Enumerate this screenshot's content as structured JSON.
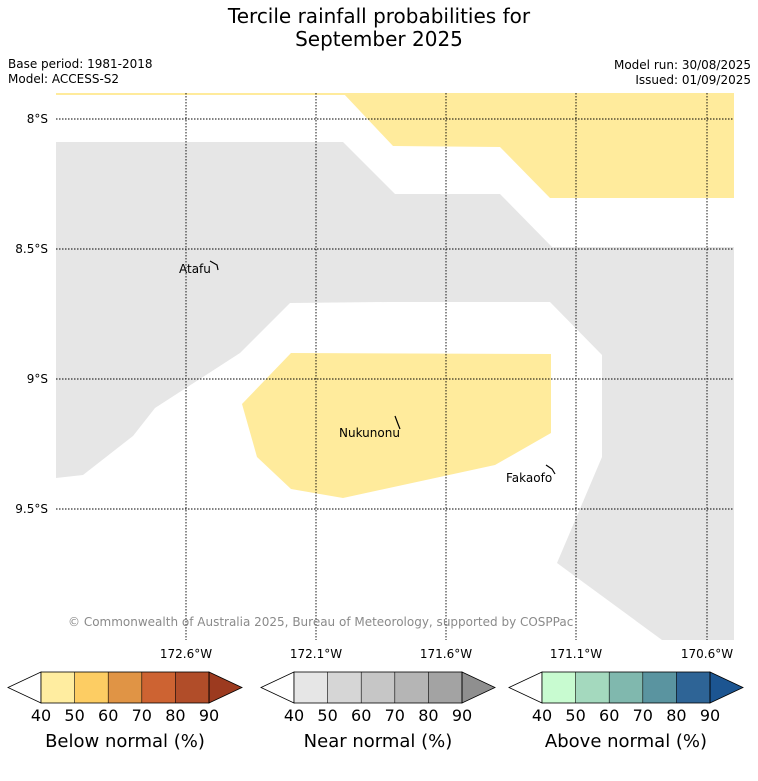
{
  "title": {
    "line1": "Tercile rainfall probabilities for",
    "line2": "September 2025"
  },
  "meta": {
    "base_period": "Base period: 1981-2018",
    "model": "Model: ACCESS-S2",
    "model_run": "Model run: 30/08/2025",
    "issued": "Issued: 01/09/2025"
  },
  "map": {
    "lat_labels": [
      "8°S",
      "8.5°S",
      "9°S",
      "9.5°S"
    ],
    "lon_labels": [
      "172.6°W",
      "172.1°W",
      "171.6°W",
      "171.1°W",
      "170.6°W"
    ],
    "towns": [
      "Atafu",
      "Nukunonu",
      "Fakaofo"
    ],
    "copyright": "© Commonwealth of Australia 2025, Bureau of Meteorology, supported by COSPPac",
    "region_colors": {
      "near_normal": "#e6e6e6",
      "below_normal_40_50": "#ffeb9c"
    }
  },
  "legends": [
    {
      "label": "Below normal (%)",
      "ticks": [
        "40",
        "50",
        "60",
        "70",
        "80",
        "90"
      ],
      "colors": [
        "#ffffff",
        "#ffeda0",
        "#fdcd63",
        "#e09445",
        "#cd6332",
        "#b14d29",
        "#9c3a1f"
      ]
    },
    {
      "label": "Near normal (%)",
      "ticks": [
        "40",
        "50",
        "60",
        "70",
        "80",
        "90"
      ],
      "colors": [
        "#ffffff",
        "#e6e6e6",
        "#d6d6d6",
        "#c6c6c6",
        "#b5b5b5",
        "#a3a3a3",
        "#8f8f8f"
      ]
    },
    {
      "label": "Above normal (%)",
      "ticks": [
        "40",
        "50",
        "60",
        "70",
        "80",
        "90"
      ],
      "colors": [
        "#ffffff",
        "#c8fbd0",
        "#a4d9be",
        "#80b8ae",
        "#5a94a0",
        "#2e6496",
        "#1c5591"
      ]
    }
  ]
}
